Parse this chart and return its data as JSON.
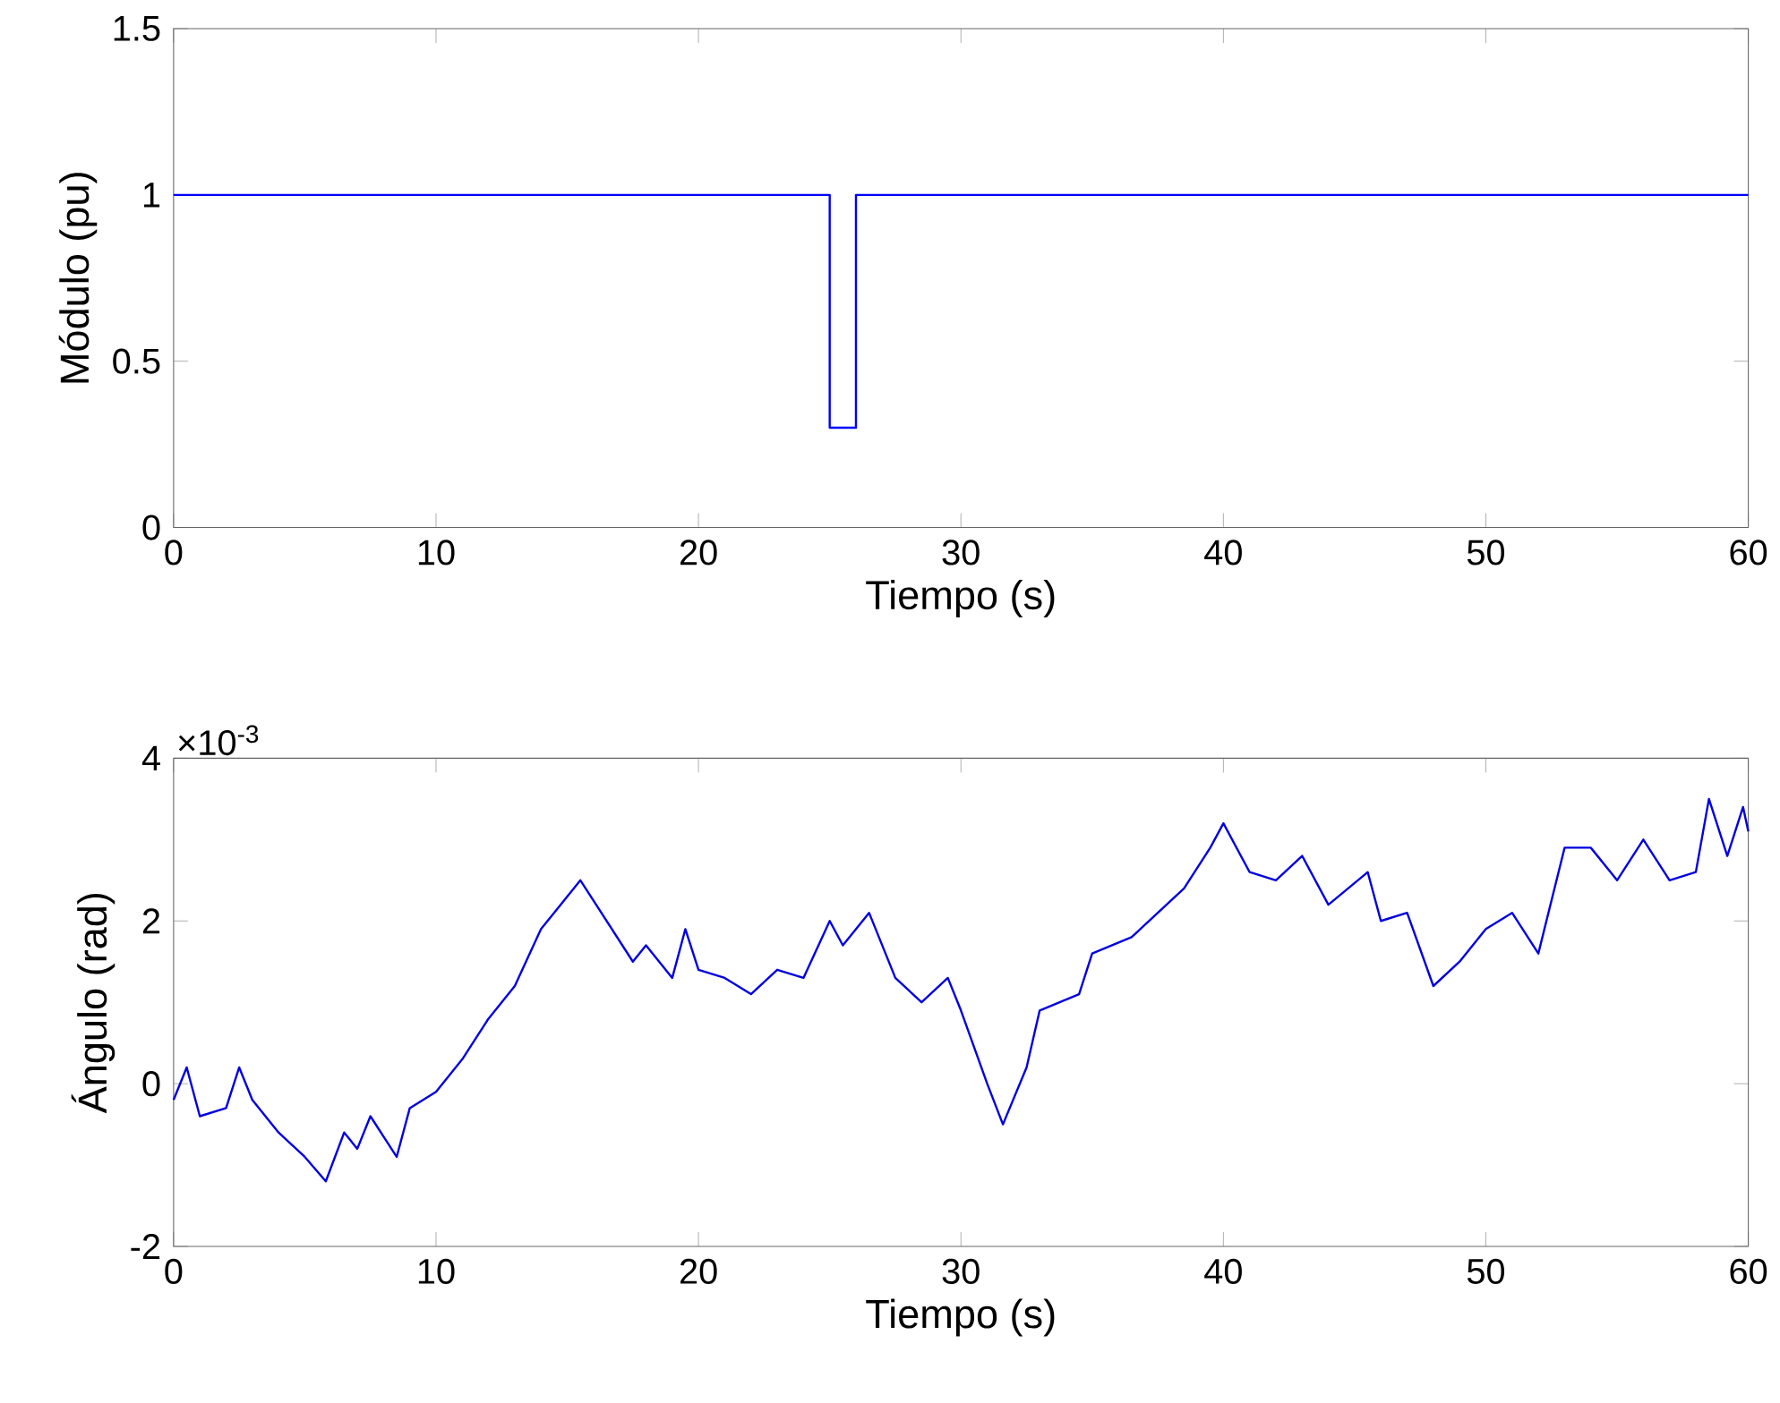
{
  "chart_data": [
    {
      "type": "line",
      "xlabel": "Tiempo (s)",
      "ylabel": "Módulo (pu)",
      "xlim": [
        0,
        60
      ],
      "ylim": [
        0,
        1.5
      ],
      "xticks": [
        0,
        10,
        20,
        30,
        40,
        50,
        60
      ],
      "yticks": [
        0,
        0.5,
        1,
        1.5
      ],
      "series": [
        {
          "color": "#0000ff",
          "x": [
            0,
            25,
            25,
            26,
            26,
            60
          ],
          "values": [
            1,
            1,
            0.3,
            0.3,
            1,
            1
          ]
        }
      ]
    },
    {
      "type": "line",
      "xlabel": "Tiempo (s)",
      "ylabel": "Ángulo (rad)",
      "xlim": [
        0,
        60
      ],
      "ylim": [
        -2,
        4
      ],
      "xticks": [
        0,
        10,
        20,
        30,
        40,
        50,
        60
      ],
      "yticks": [
        -2,
        0,
        2,
        4
      ],
      "annotations": [
        "×10$^{-3}$"
      ],
      "series": [
        {
          "color": "#0000e0",
          "x": [
            0,
            0.5,
            1,
            2,
            2.5,
            3,
            4,
            5,
            5.8,
            6.5,
            7,
            7.5,
            8.5,
            9,
            10,
            11,
            12,
            13,
            14,
            15,
            15.5,
            16.5,
            17.5,
            18,
            19,
            19.5,
            20,
            21,
            22,
            23,
            24,
            25,
            25.5,
            26.5,
            27.5,
            28.5,
            29.5,
            30,
            31,
            31.6,
            32.5,
            33,
            34.5,
            35,
            36.5,
            37.5,
            38.5,
            39.5,
            40,
            41,
            42,
            43,
            44,
            45.5,
            46,
            47,
            48,
            49,
            50,
            51,
            52,
            53,
            54,
            55,
            56,
            57,
            58,
            58.5,
            59.2,
            59.8,
            60
          ],
          "values": [
            -0.2,
            0.2,
            -0.4,
            -0.3,
            0.2,
            -0.2,
            -0.6,
            -0.9,
            -1.2,
            -0.6,
            -0.8,
            -0.4,
            -0.9,
            -0.3,
            -0.1,
            0.3,
            0.8,
            1.2,
            1.9,
            2.3,
            2.5,
            2.0,
            1.5,
            1.7,
            1.3,
            1.9,
            1.4,
            1.3,
            1.1,
            1.4,
            1.3,
            2.0,
            1.7,
            2.1,
            1.3,
            1.0,
            1.3,
            0.9,
            0.0,
            -0.5,
            0.2,
            0.9,
            1.1,
            1.6,
            1.8,
            2.1,
            2.4,
            2.9,
            3.2,
            2.6,
            2.5,
            2.8,
            2.2,
            2.6,
            2.0,
            2.1,
            1.2,
            1.5,
            1.9,
            2.1,
            1.6,
            2.9,
            2.9,
            2.5,
            3.0,
            2.5,
            2.6,
            3.5,
            2.8,
            3.4,
            3.1
          ]
        }
      ]
    }
  ]
}
